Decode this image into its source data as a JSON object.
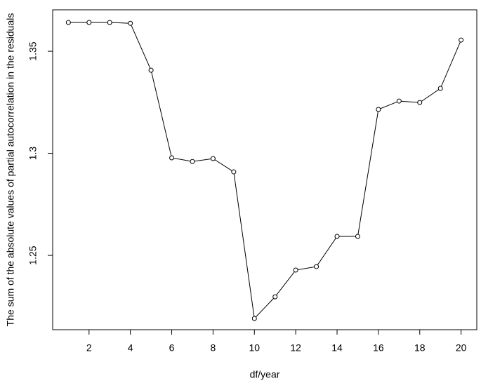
{
  "chart_data": {
    "type": "line",
    "x_label": "df/year",
    "y_label": "The sum of the absolute values of partial autocorrelation in the residuals",
    "x": [
      1,
      2,
      3,
      4,
      5,
      6,
      7,
      8,
      9,
      10,
      11,
      12,
      13,
      14,
      15,
      16,
      17,
      18,
      19,
      20
    ],
    "values": [
      1.3641,
      1.3641,
      1.3641,
      1.3637,
      1.3407,
      1.2978,
      1.296,
      1.2974,
      1.2909,
      1.2191,
      1.2297,
      1.2428,
      1.2445,
      1.2593,
      1.2593,
      1.3215,
      1.3256,
      1.3249,
      1.3318,
      1.3555
    ],
    "color": "#000000",
    "xlim": [
      0.24,
      20.76
    ],
    "xticks": [
      2,
      4,
      6,
      8,
      10,
      12,
      14,
      16,
      18,
      20
    ],
    "ylim": [
      1.2136,
      1.3703
    ],
    "yticks": [
      1.25,
      1.3,
      1.35
    ]
  }
}
